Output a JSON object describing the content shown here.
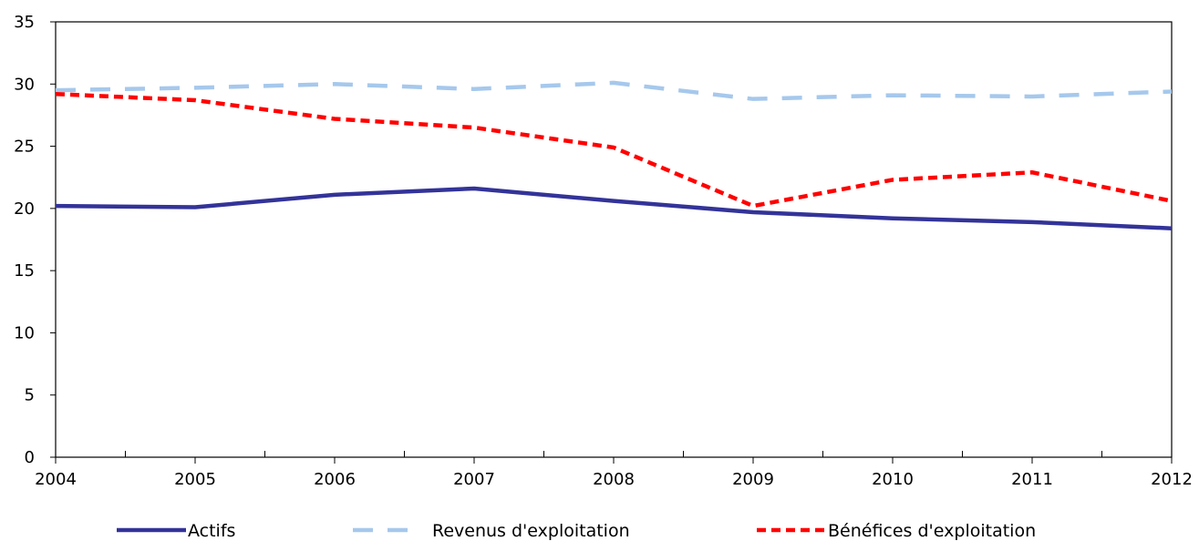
{
  "chart_data": {
    "type": "line",
    "title": "",
    "xlabel": "",
    "ylabel": "",
    "x": [
      "2004",
      "2005",
      "2006",
      "2007",
      "2008",
      "2009",
      "2010",
      "2011",
      "2012"
    ],
    "ylim": [
      0,
      35
    ],
    "yticks": [
      "0",
      "5",
      "10",
      "15",
      "20",
      "25",
      "30",
      "35"
    ],
    "grid": false,
    "legend_position": "bottom",
    "series": [
      {
        "name": "Actifs",
        "style": "solid",
        "color": "#333399",
        "values": [
          20.2,
          20.1,
          21.1,
          21.6,
          20.6,
          19.7,
          19.2,
          18.9,
          18.4
        ]
      },
      {
        "name": "Revenus d'exploitation",
        "style": "dashed",
        "color": "#a6c8ec",
        "values": [
          29.5,
          29.7,
          30.0,
          29.6,
          30.1,
          28.8,
          29.1,
          29.0,
          29.4
        ]
      },
      {
        "name": "Bénéfices d'exploitation",
        "style": "dotted-dash",
        "color": "#ff0000",
        "values": [
          29.2,
          28.7,
          27.2,
          26.5,
          24.9,
          20.2,
          22.3,
          22.9,
          20.6
        ]
      }
    ]
  }
}
